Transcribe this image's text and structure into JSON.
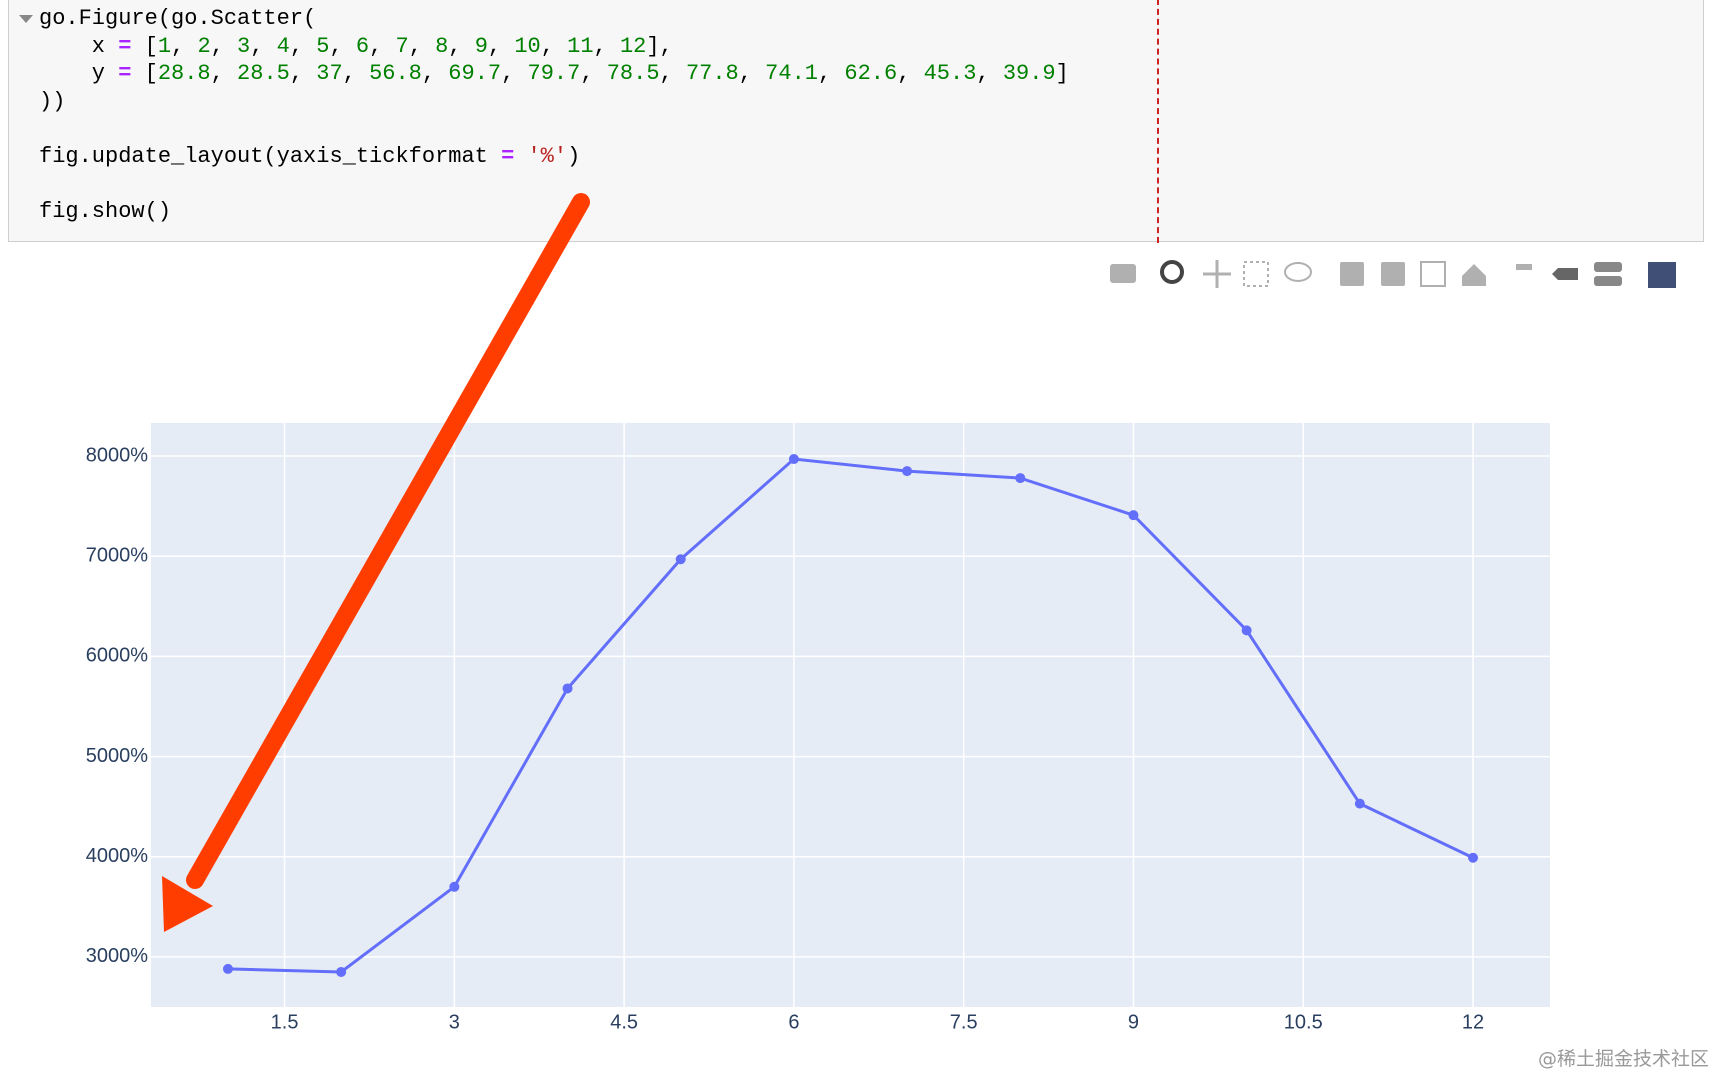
{
  "code_cell": {
    "lines": [
      "go.Figure(go.Scatter(",
      "    x = [1, 2, 3, 4, 5, 6, 7, 8, 9, 10, 11, 12],",
      "    y = [28.8, 28.5, 37, 56.8, 69.7, 79.7, 78.5, 77.8, 74.1, 62.6, 45.3, 39.9]",
      "))",
      "",
      "fig.update_layout(yaxis_tickformat = '%')",
      "",
      "fig.show()"
    ]
  },
  "chart_data": {
    "type": "scatter",
    "mode": "lines+markers",
    "x": [
      1,
      2,
      3,
      4,
      5,
      6,
      7,
      8,
      9,
      10,
      11,
      12
    ],
    "values": [
      28.8,
      28.5,
      37,
      56.8,
      69.7,
      79.7,
      78.5,
      77.8,
      74.1,
      62.6,
      45.3,
      39.9
    ],
    "color": "#636efa",
    "xlim": [
      0.32,
      12.68
    ],
    "ylim": [
      25.0,
      83.3
    ],
    "xticks": [
      1.5,
      3,
      4.5,
      6,
      7.5,
      9,
      10.5,
      12
    ],
    "yticks": [
      {
        "value": 30,
        "label": "3000%"
      },
      {
        "value": 40,
        "label": "4000%"
      },
      {
        "value": 50,
        "label": "5000%"
      },
      {
        "value": 60,
        "label": "6000%"
      },
      {
        "value": 70,
        "label": "7000%"
      },
      {
        "value": 80,
        "label": "8000%"
      }
    ],
    "grid": true
  },
  "watermark": "@稀土掘金技术社区"
}
